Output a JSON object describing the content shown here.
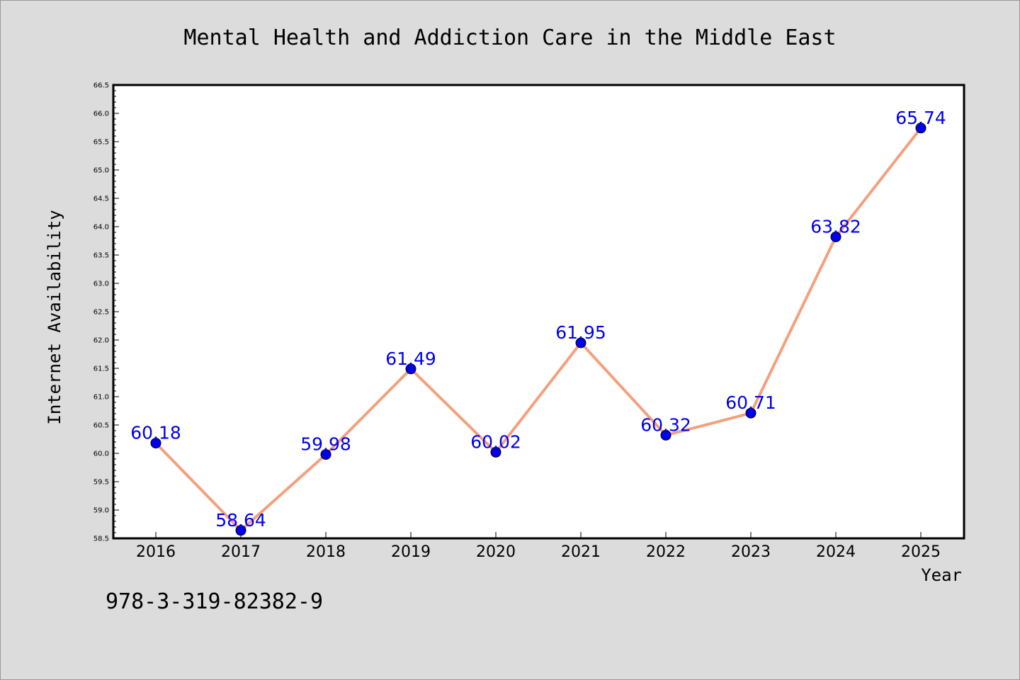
{
  "footer_id": "978-3-319-82382-9",
  "colors": {
    "background": "#dcdcdc",
    "plot_background": "#ffffff",
    "line": "#f4a07e",
    "marker": "#0000ee",
    "label": "#0000ee",
    "text": "#000000"
  },
  "chart_data": {
    "type": "line",
    "title": "Mental Health and Addiction Care in the Middle East",
    "xlabel": "Year",
    "ylabel": "Internet Availability",
    "categories": [
      "2016",
      "2017",
      "2018",
      "2019",
      "2020",
      "2021",
      "2022",
      "2023",
      "2024",
      "2025"
    ],
    "values": [
      60.18,
      58.64,
      59.98,
      61.49,
      60.02,
      61.95,
      60.32,
      60.71,
      63.82,
      65.74
    ],
    "data_labels": [
      "60.18",
      "58.64",
      "59.98",
      "61.49",
      "60.02",
      "61.95",
      "60.32",
      "60.71",
      "63.82",
      "65.74"
    ],
    "ylim": [
      58.5,
      66.5
    ],
    "yticks": [
      "58.5",
      "59.0",
      "59.5",
      "60.0",
      "60.5",
      "61.0",
      "61.5",
      "62.0",
      "62.5",
      "63.0",
      "63.5",
      "64.0",
      "64.5",
      "65.0",
      "65.5",
      "66.0",
      "66.5"
    ],
    "grid": false,
    "legend": "none"
  }
}
